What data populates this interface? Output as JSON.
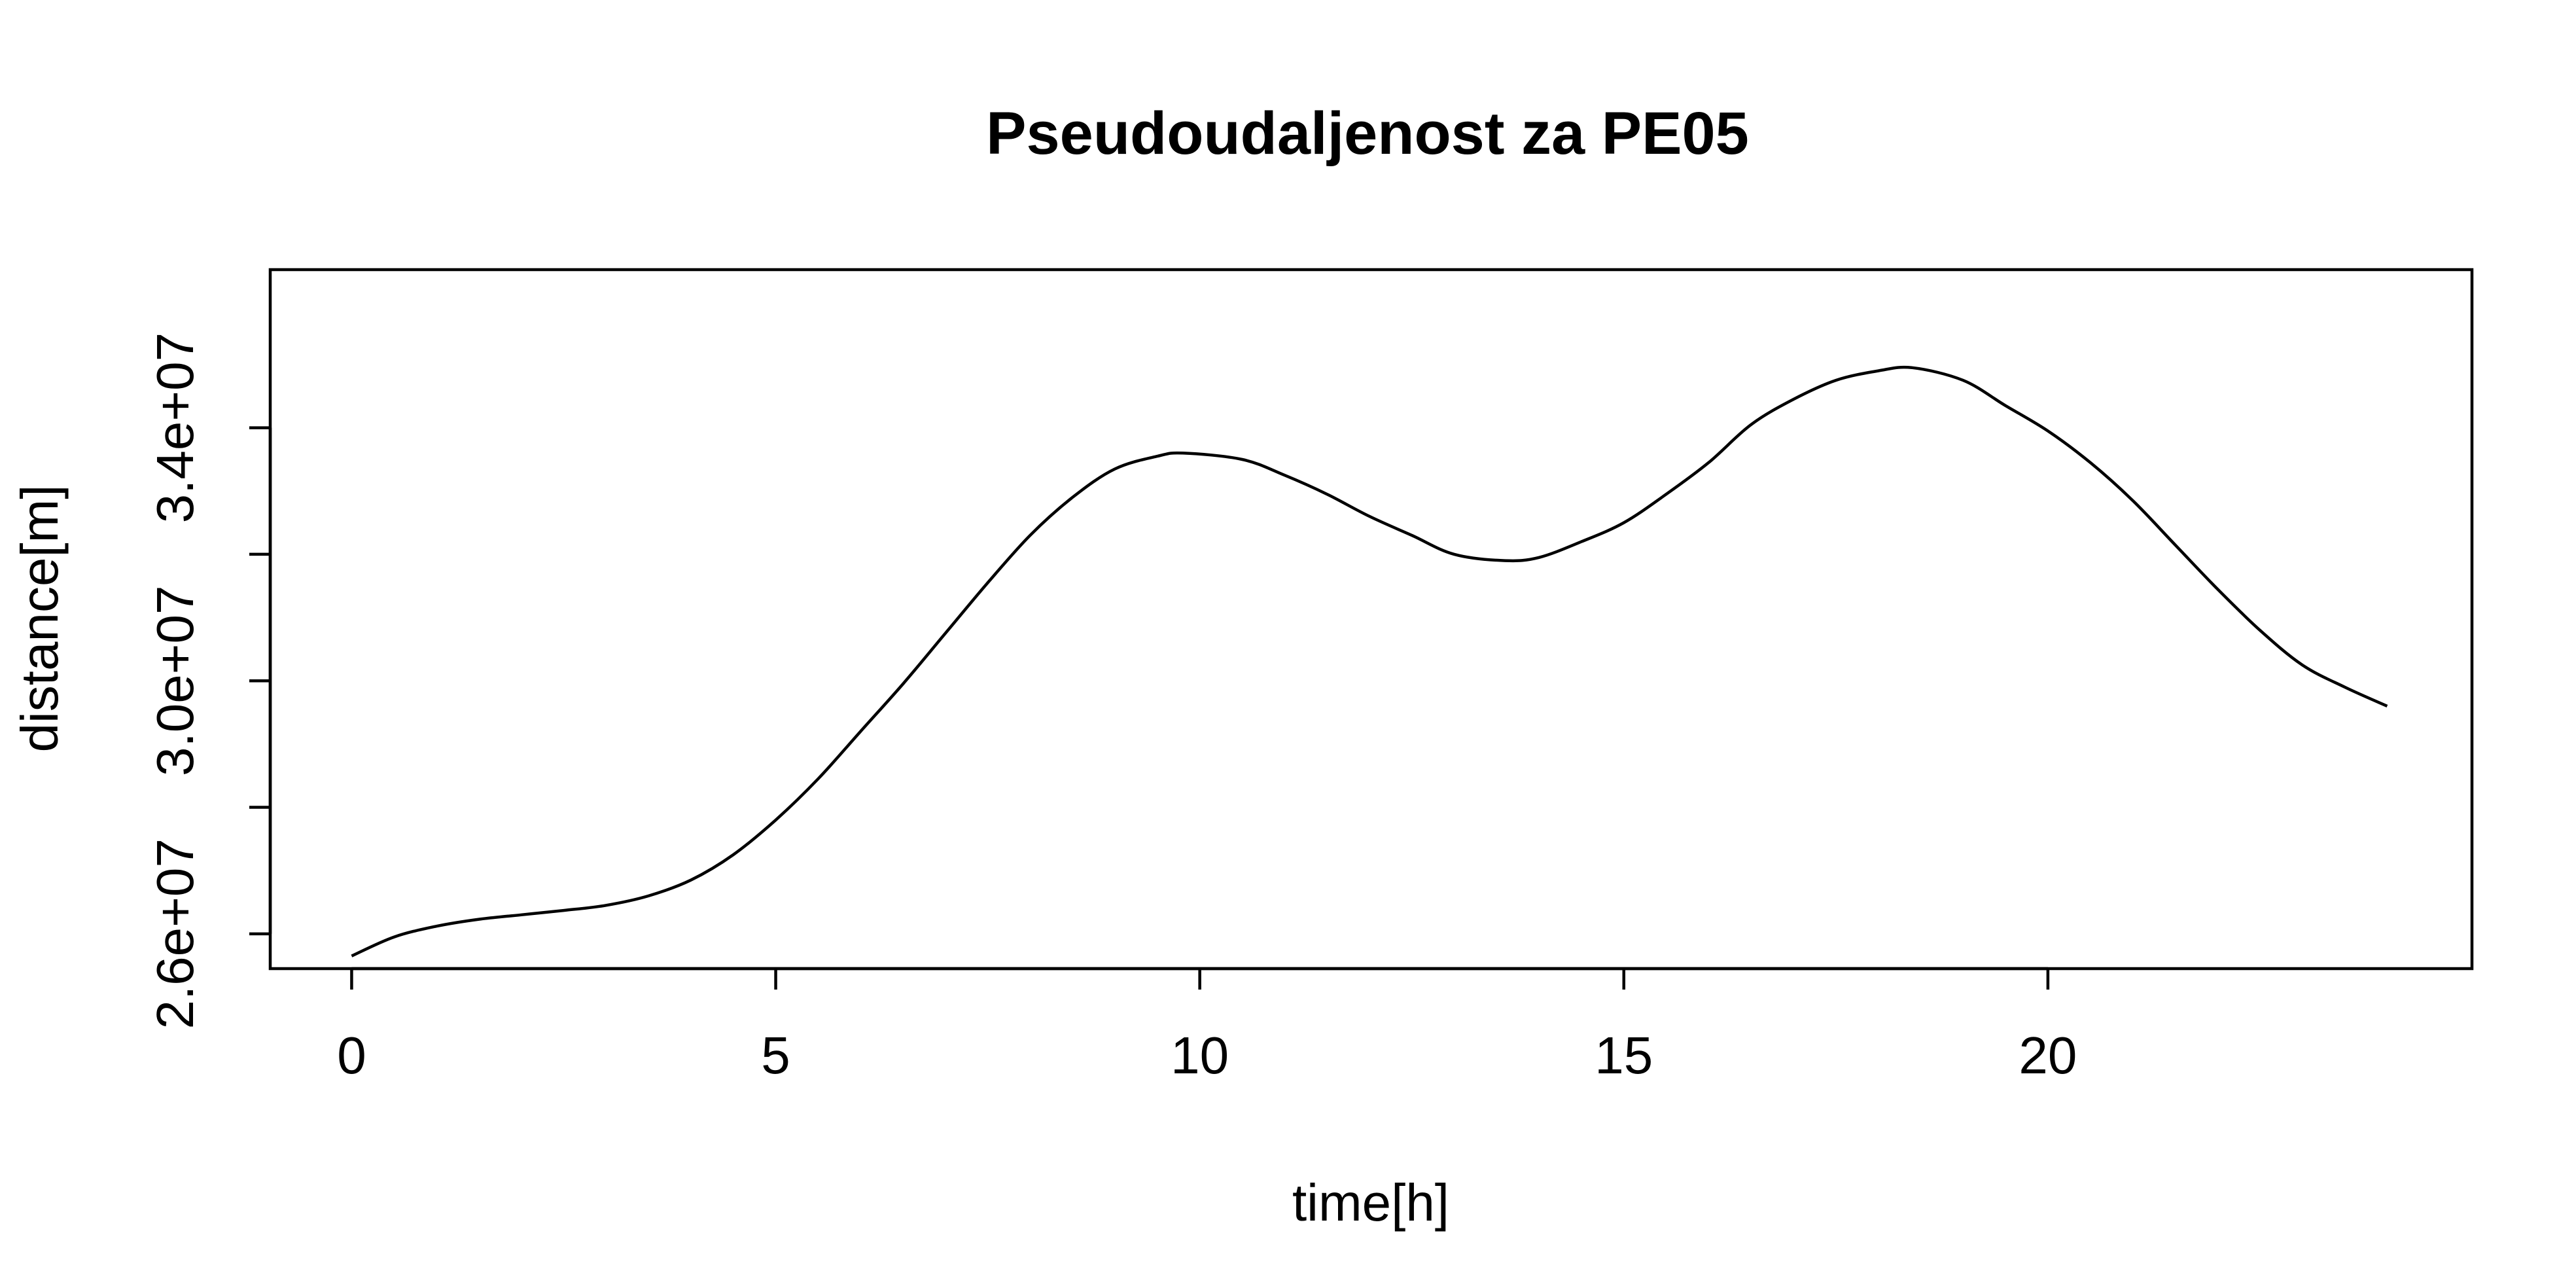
{
  "chart_data": {
    "type": "line",
    "title": "Pseudoudaljenost za PE05",
    "xlabel": "time[h]",
    "ylabel": "distance[m]",
    "xlim": [
      -0.96,
      25.0
    ],
    "ylim": [
      25450000,
      36500000
    ],
    "x_ticks": [
      0,
      5,
      10,
      15,
      20
    ],
    "x_tick_labels": [
      "0",
      "5",
      "10",
      "15",
      "20"
    ],
    "y_ticks": [
      26000000,
      28000000,
      30000000,
      32000000,
      34000000
    ],
    "y_tick_labels": [
      "2.6e+07",
      "",
      "3.0e+07",
      "",
      "3.4e+07"
    ],
    "grid": false,
    "legend": null,
    "series": [
      {
        "x": [
          0,
          0.5,
          1,
          1.5,
          2,
          2.5,
          3,
          3.5,
          4,
          4.5,
          5,
          5.5,
          6,
          6.5,
          7,
          7.5,
          8,
          8.5,
          9,
          9.5,
          9.8,
          10.5,
          11,
          11.5,
          12,
          12.5,
          13,
          13.6,
          14,
          14.5,
          15,
          15.5,
          16,
          16.5,
          17,
          17.5,
          18,
          18.4,
          19,
          19.5,
          20,
          20.5,
          21,
          21.5,
          22,
          22.5,
          23,
          23.5,
          24
        ],
        "y": [
          25650000,
          25950000,
          26120000,
          26230000,
          26300000,
          26370000,
          26450000,
          26600000,
          26850000,
          27250000,
          27800000,
          28450000,
          29200000,
          29950000,
          30750000,
          31550000,
          32300000,
          32900000,
          33350000,
          33550000,
          33600000,
          33500000,
          33250000,
          32950000,
          32600000,
          32300000,
          32000000,
          31900000,
          31950000,
          32200000,
          32500000,
          32950000,
          33450000,
          34050000,
          34450000,
          34750000,
          34900000,
          34950000,
          34750000,
          34350000,
          33950000,
          33450000,
          32850000,
          32150000,
          31450000,
          30800000,
          30250000,
          29900000,
          29600000
        ]
      }
    ]
  }
}
